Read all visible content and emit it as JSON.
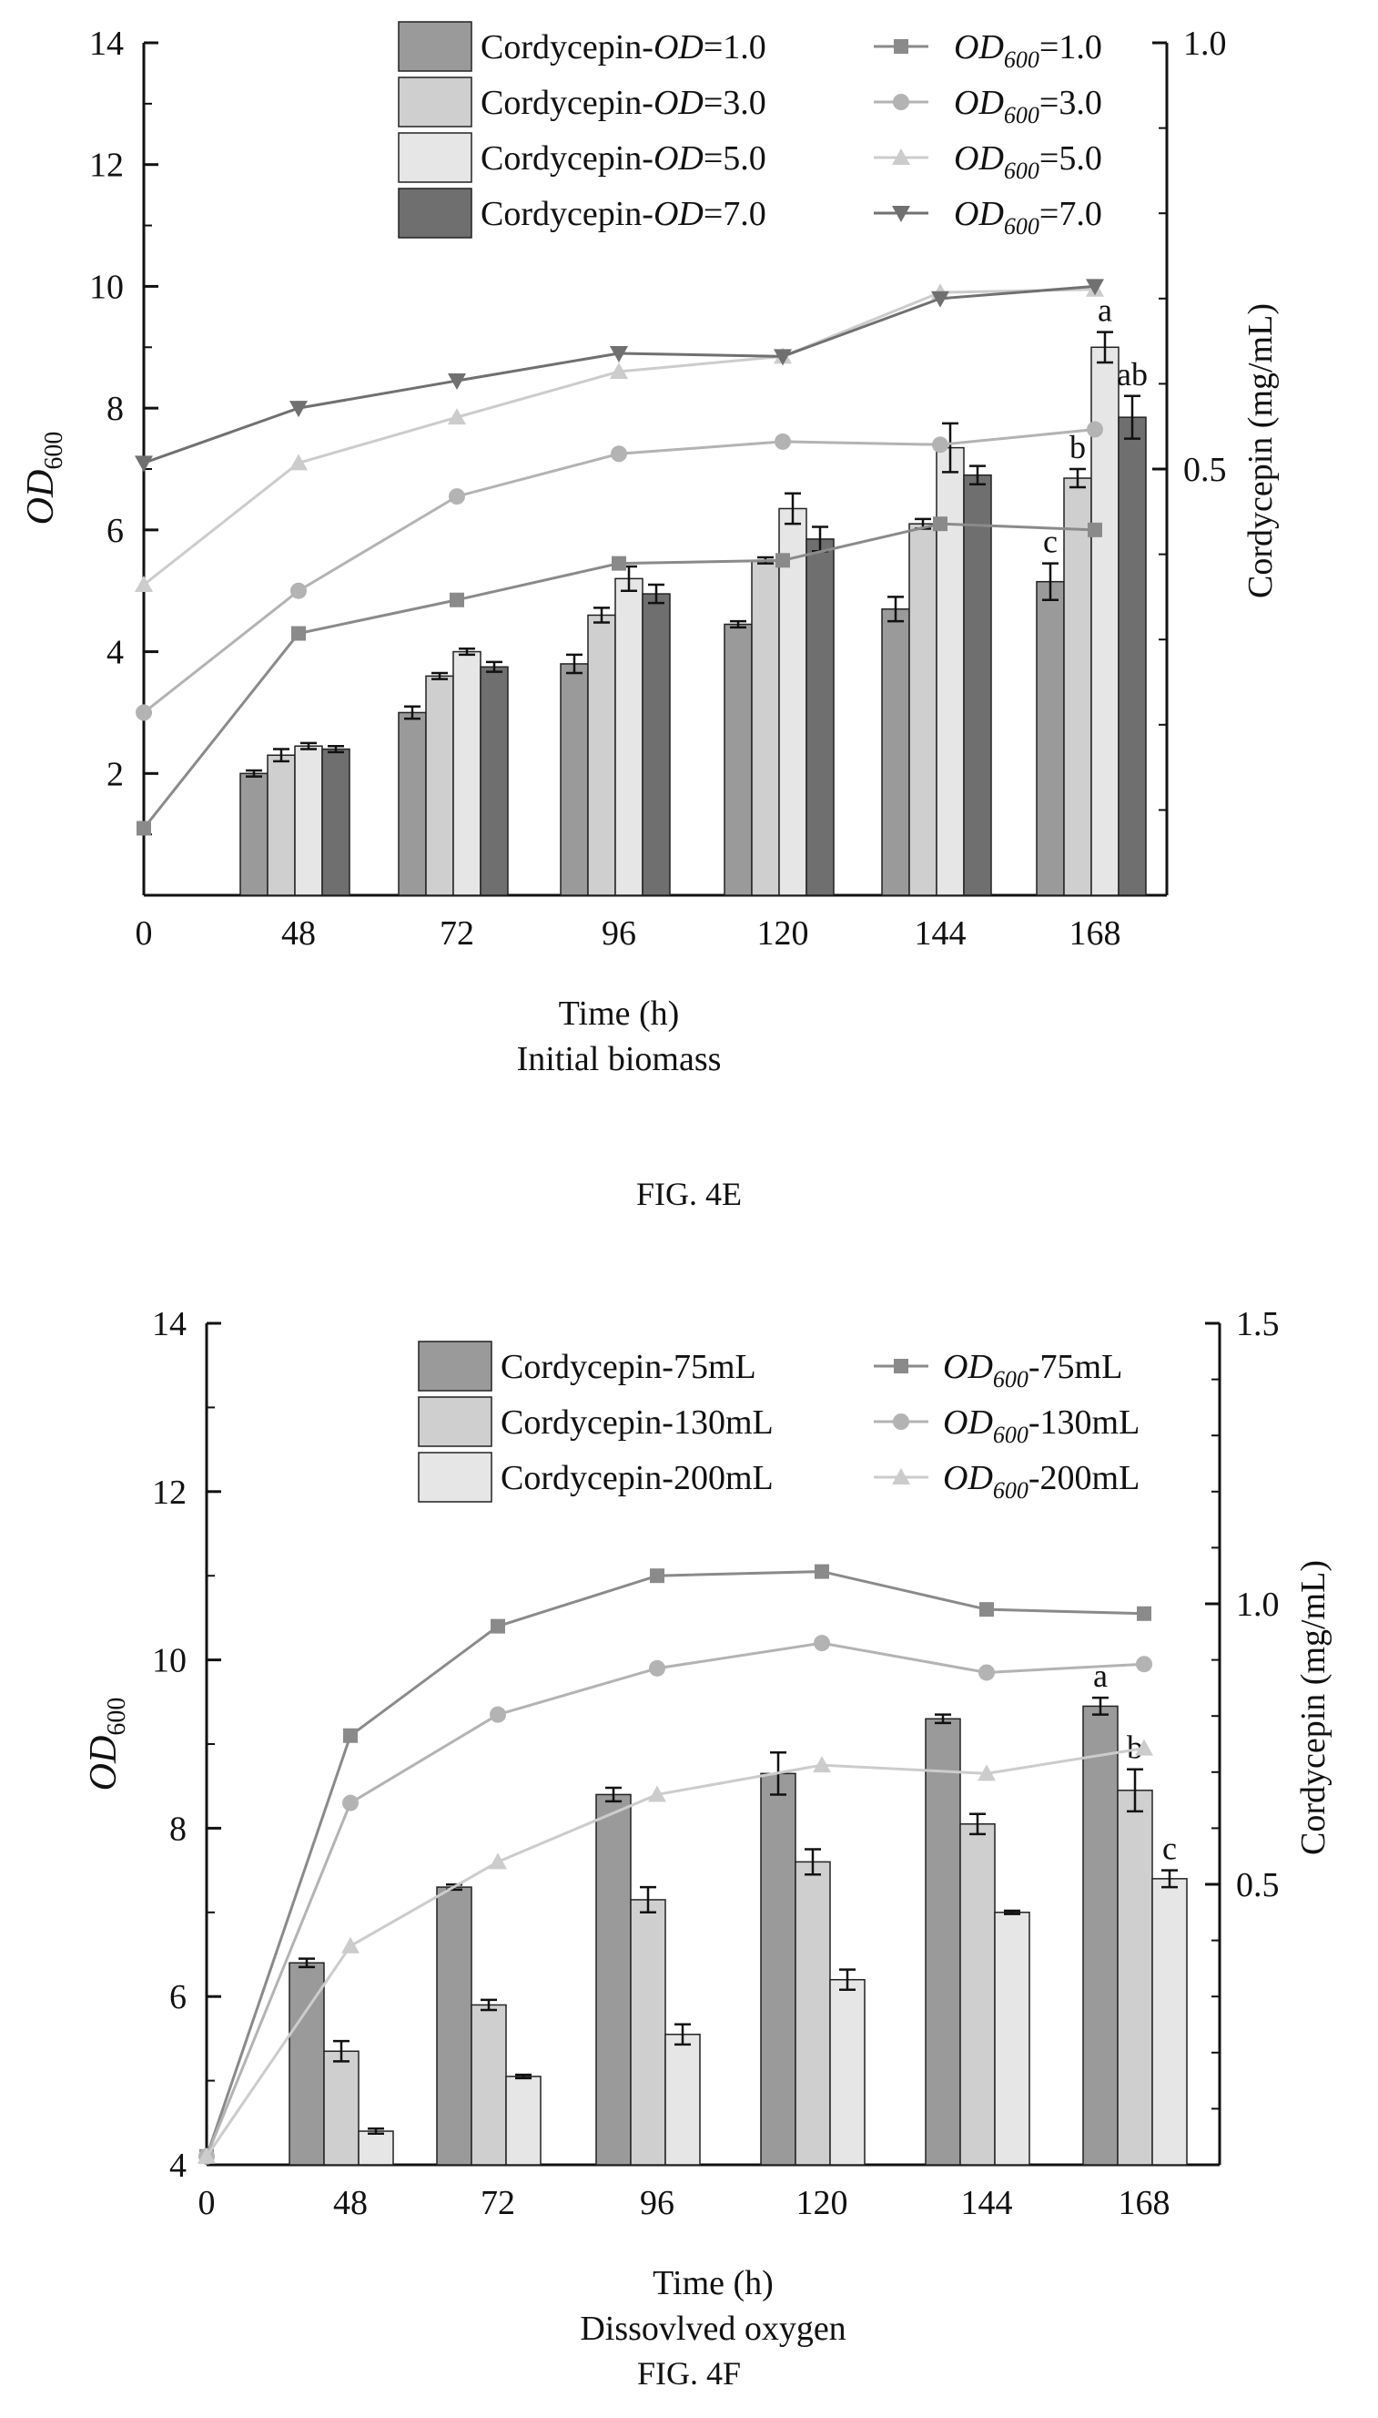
{
  "captions": [
    "FIG. 4E",
    "FIG. 4F"
  ],
  "chart_data": [
    {
      "id": "fig4e",
      "type": "bar+line",
      "xlabel": "Time (h)",
      "subtitle": "Initial biomass",
      "ylabel_left_main": "OD",
      "ylabel_left_sub": "600",
      "ylabel_right": "Cordycepin (mg/mL)",
      "x_ticks": [
        "0",
        "48",
        "72",
        "96",
        "120",
        "144",
        "168"
      ],
      "y_left": {
        "min": 0,
        "max": 14,
        "ticks": [
          2,
          4,
          6,
          8,
          10,
          12,
          14
        ],
        "tick_labels": [
          "2",
          "4",
          "6",
          "8",
          "10",
          "12",
          "14"
        ]
      },
      "y_right": {
        "min": 0,
        "max": 1.0,
        "ticks": [
          0.5,
          1.0
        ],
        "tick_labels": [
          "0.5",
          "1.0"
        ]
      },
      "categories": [
        "48",
        "72",
        "96",
        "120",
        "144",
        "168"
      ],
      "bar_series": [
        {
          "legend": [
            "Cordycepin-",
            "OD",
            "=1.0"
          ],
          "color": "#9a9a9a",
          "values": [
            2.0,
            3.0,
            3.8,
            4.45,
            4.7,
            5.15
          ],
          "errors": [
            0.05,
            0.1,
            0.15,
            0.05,
            0.2,
            0.3
          ]
        },
        {
          "legend": [
            "Cordycepin-",
            "OD",
            "=3.0"
          ],
          "color": "#cfcfcf",
          "values": [
            2.3,
            3.6,
            4.6,
            5.5,
            6.1,
            6.85
          ],
          "errors": [
            0.1,
            0.05,
            0.12,
            0.05,
            0.08,
            0.15
          ]
        },
        {
          "legend": [
            "Cordycepin-",
            "OD",
            "=5.0"
          ],
          "color": "#e6e6e6",
          "values": [
            2.45,
            4.0,
            5.2,
            6.35,
            7.35,
            9.0
          ],
          "errors": [
            0.05,
            0.05,
            0.2,
            0.25,
            0.4,
            0.25
          ]
        },
        {
          "legend": [
            "Cordycepin-",
            "OD",
            "=7.0"
          ],
          "color": "#6f6f6f",
          "values": [
            2.4,
            3.75,
            4.95,
            5.85,
            6.9,
            7.85
          ],
          "errors": [
            0.05,
            0.08,
            0.15,
            0.2,
            0.15,
            0.35
          ]
        }
      ],
      "bar_labels": [
        {
          "category": "168",
          "series": 0,
          "text": "c"
        },
        {
          "category": "168",
          "series": 1,
          "text": "b"
        },
        {
          "category": "168",
          "series": 2,
          "text": "a"
        },
        {
          "category": "168",
          "series": 3,
          "text": "ab"
        }
      ],
      "line_series": [
        {
          "legend_main": "OD",
          "legend_sub": "600",
          "legend_tail": "=1.0",
          "marker": "square",
          "color": "#8a8a8a",
          "x": [
            0,
            48,
            72,
            96,
            120,
            144,
            168
          ],
          "y": [
            1.1,
            4.3,
            4.85,
            5.45,
            5.5,
            6.1,
            6.0
          ]
        },
        {
          "legend_main": "OD",
          "legend_sub": "600",
          "legend_tail": "=3.0",
          "marker": "circle",
          "color": "#b3b3b3",
          "x": [
            0,
            48,
            72,
            96,
            120,
            144,
            168
          ],
          "y": [
            3.0,
            5.0,
            6.55,
            7.25,
            7.45,
            7.4,
            7.65
          ]
        },
        {
          "legend_main": "OD",
          "legend_sub": "600",
          "legend_tail": "=5.0",
          "marker": "triangle",
          "color": "#cccccc",
          "x": [
            0,
            48,
            72,
            96,
            120,
            144,
            168
          ],
          "y": [
            5.1,
            7.1,
            7.85,
            8.6,
            8.85,
            9.9,
            9.95
          ]
        },
        {
          "legend_main": "OD",
          "legend_sub": "600",
          "legend_tail": "=7.0",
          "marker": "triangle-down",
          "color": "#707070",
          "x": [
            0,
            48,
            72,
            96,
            120,
            144,
            168
          ],
          "y": [
            7.1,
            8.0,
            8.45,
            8.9,
            8.85,
            9.8,
            10.0
          ]
        }
      ]
    },
    {
      "id": "fig4f",
      "type": "bar+line",
      "xlabel": "Time (h)",
      "subtitle": "Dissovlved oxygen",
      "ylabel_left_main": "OD",
      "ylabel_left_sub": "600",
      "ylabel_right": "Cordycepin (mg/mL)",
      "x_ticks": [
        "0",
        "48",
        "72",
        "96",
        "120",
        "144",
        "168"
      ],
      "y_left": {
        "min": 4,
        "max": 14,
        "ticks": [
          4,
          6,
          8,
          10,
          12,
          14
        ],
        "tick_labels": [
          "4",
          "6",
          "8",
          "10",
          "12",
          "14"
        ]
      },
      "y_right": {
        "min": 0,
        "max": 1.5,
        "ticks": [
          0.5,
          1.0,
          1.5
        ],
        "tick_labels": [
          "0.5",
          "1.0",
          "1.5"
        ]
      },
      "categories": [
        "48",
        "72",
        "96",
        "120",
        "144",
        "168"
      ],
      "bar_series": [
        {
          "legend": [
            "Cordycepin-75mL"
          ],
          "color": "#9a9a9a",
          "values": [
            6.4,
            7.3,
            8.4,
            8.65,
            9.3,
            9.45
          ],
          "errors": [
            0.05,
            0.03,
            0.08,
            0.25,
            0.05,
            0.1
          ]
        },
        {
          "legend": [
            "Cordycepin-130mL"
          ],
          "color": "#cfcfcf",
          "values": [
            5.35,
            5.9,
            7.15,
            7.6,
            8.05,
            8.45
          ],
          "errors": [
            0.12,
            0.06,
            0.15,
            0.15,
            0.12,
            0.25
          ]
        },
        {
          "legend": [
            "Cordycepin-200mL"
          ],
          "color": "#e6e6e6",
          "values": [
            4.4,
            5.05,
            5.55,
            6.2,
            7.0,
            7.4
          ],
          "errors": [
            0.03,
            0.02,
            0.12,
            0.12,
            0.02,
            0.1
          ]
        }
      ],
      "bar_labels": [
        {
          "category": "168",
          "series": 0,
          "text": "a"
        },
        {
          "category": "168",
          "series": 1,
          "text": "b"
        },
        {
          "category": "168",
          "series": 2,
          "text": "c"
        }
      ],
      "line_series": [
        {
          "legend_main": "OD",
          "legend_sub": "600",
          "legend_tail": "-75mL",
          "marker": "square",
          "color": "#8a8a8a",
          "x": [
            0,
            48,
            72,
            96,
            120,
            144,
            168
          ],
          "y": [
            4.1,
            9.1,
            10.4,
            11.0,
            11.05,
            10.6,
            10.55
          ]
        },
        {
          "legend_main": "OD",
          "legend_sub": "600",
          "legend_tail": "-130mL",
          "marker": "circle",
          "color": "#b3b3b3",
          "x": [
            0,
            48,
            72,
            96,
            120,
            144,
            168
          ],
          "y": [
            4.1,
            8.3,
            9.35,
            9.9,
            10.2,
            9.85,
            9.95
          ]
        },
        {
          "legend_main": "OD",
          "legend_sub": "600",
          "legend_tail": "-200mL",
          "marker": "triangle",
          "color": "#cccccc",
          "x": [
            0,
            48,
            72,
            96,
            120,
            144,
            168
          ],
          "y": [
            4.1,
            6.6,
            7.6,
            8.4,
            8.75,
            8.65,
            8.95
          ]
        }
      ]
    }
  ]
}
